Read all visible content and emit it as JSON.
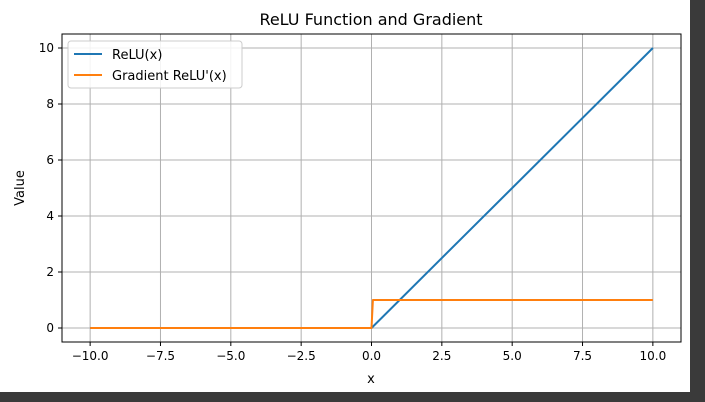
{
  "chart_data": {
    "type": "line",
    "title": "ReLU Function and Gradient",
    "xlabel": "x",
    "ylabel": "Value",
    "xlim": [
      -11.0,
      11.0
    ],
    "ylim": [
      -0.5,
      10.5
    ],
    "xticks": [
      -10.0,
      -7.5,
      -5.0,
      -2.5,
      0.0,
      2.5,
      5.0,
      7.5,
      10.0
    ],
    "xtick_labels": [
      "−10.0",
      "−7.5",
      "−5.0",
      "−2.5",
      "0.0",
      "2.5",
      "5.0",
      "7.5",
      "10.0"
    ],
    "yticks": [
      0,
      2,
      4,
      6,
      8,
      10
    ],
    "ytick_labels": [
      "0",
      "2",
      "4",
      "6",
      "8",
      "10"
    ],
    "grid": true,
    "legend_position": "top-left",
    "series": [
      {
        "name": "ReLU(x)",
        "color": "#1f77b4",
        "x": [
          -10.0,
          0.0,
          10.0
        ],
        "y": [
          0,
          0,
          10
        ]
      },
      {
        "name": "Gradient ReLU'(x)",
        "color": "#ff7f0e",
        "x": [
          -10.0,
          0.0,
          0.05,
          10.0
        ],
        "y": [
          0,
          0,
          1,
          1
        ]
      }
    ]
  }
}
